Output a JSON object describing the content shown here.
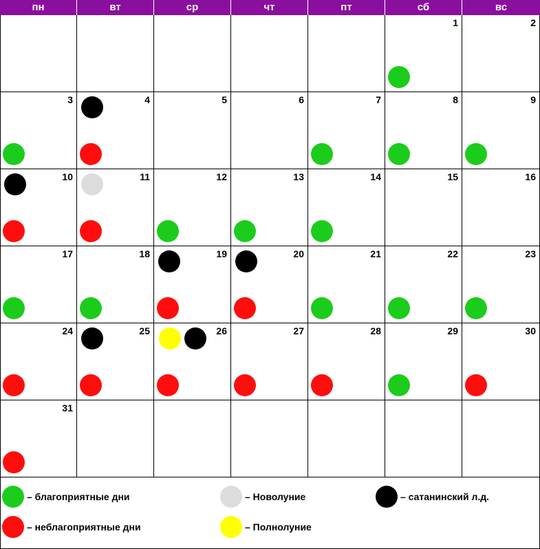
{
  "weekdays": [
    "пн",
    "вт",
    "ср",
    "чт",
    "пт",
    "сб",
    "вс"
  ],
  "colors": {
    "header_bg": "#8b0f9e",
    "green": "#1ccc1c",
    "red": "#ff0d0d",
    "black": "#000000",
    "gray": "#dcdcdc",
    "yellow": "#ffff00"
  },
  "weeks": [
    [
      null,
      null,
      null,
      null,
      null,
      1,
      2
    ],
    [
      3,
      4,
      5,
      6,
      7,
      8,
      9
    ],
    [
      10,
      11,
      12,
      13,
      14,
      15,
      16
    ],
    [
      17,
      18,
      19,
      20,
      21,
      22,
      23
    ],
    [
      24,
      25,
      26,
      27,
      28,
      29,
      30
    ],
    [
      31,
      null,
      null,
      null,
      null,
      null,
      null
    ]
  ],
  "day_markers": {
    "1": [
      "green"
    ],
    "2": [],
    "3": [
      "green"
    ],
    "4": [
      "black",
      "red"
    ],
    "5": [],
    "6": [],
    "7": [
      "green"
    ],
    "8": [
      "green"
    ],
    "9": [
      "green"
    ],
    "10": [
      "black",
      "red"
    ],
    "11": [
      "gray",
      "red"
    ],
    "12": [
      "green"
    ],
    "13": [
      "green"
    ],
    "14": [
      "green"
    ],
    "15": [],
    "16": [],
    "17": [
      "green"
    ],
    "18": [
      "green"
    ],
    "19": [
      "black",
      "red"
    ],
    "20": [
      "black",
      "red"
    ],
    "21": [
      "green"
    ],
    "22": [
      "green"
    ],
    "23": [
      "green"
    ],
    "24": [
      "red"
    ],
    "25": [
      "black",
      "red"
    ],
    "26": [
      "yellow",
      "black",
      "red"
    ],
    "27": [
      "red"
    ],
    "28": [
      "red"
    ],
    "29": [
      "green"
    ],
    "30": [
      "red"
    ],
    "31": [
      "red"
    ]
  },
  "legend": [
    {
      "color": "green",
      "label": "– благоприятные дни"
    },
    {
      "color": "gray",
      "label": "– Новолуние"
    },
    {
      "color": "black",
      "label": "– сатанинский л.д."
    },
    {
      "color": "red",
      "label": "– неблагоприятные дни"
    },
    {
      "color": "yellow",
      "label": "– Полнолуние"
    }
  ]
}
